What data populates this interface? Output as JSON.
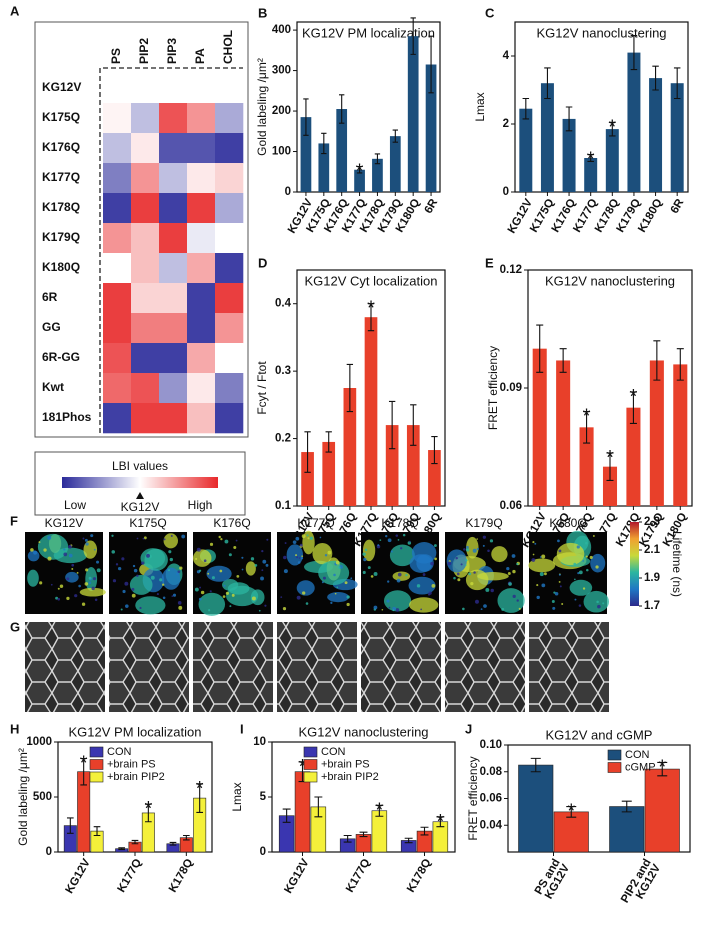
{
  "chart_data": [
    {
      "panel": "A",
      "type": "heatmap",
      "columns": [
        "PS",
        "PIP2",
        "PIP3",
        "PA",
        "CHOL"
      ],
      "rows": [
        "KG12V",
        "K175Q",
        "K176Q",
        "K177Q",
        "K178Q",
        "K179Q",
        "K180Q",
        "6R",
        "GG",
        "6R-GG",
        "Kwt",
        "181Phos"
      ],
      "values": [
        [
          0,
          0,
          0,
          0,
          0
        ],
        [
          0.05,
          -0.3,
          0.8,
          0.5,
          -0.4
        ],
        [
          -0.3,
          0.1,
          -0.8,
          -0.8,
          -0.9
        ],
        [
          -0.6,
          0.5,
          -0.3,
          0.1,
          0.2
        ],
        [
          -0.9,
          0.9,
          -0.9,
          0.9,
          -0.4
        ],
        [
          0.5,
          0.3,
          0.9,
          -0.1,
          0
        ],
        [
          0,
          0.3,
          -0.3,
          0.4,
          -0.9
        ],
        [
          0.9,
          0.2,
          0.2,
          -0.9,
          0.9
        ],
        [
          0.9,
          0.6,
          0.6,
          -0.9,
          0.5
        ],
        [
          0.8,
          -0.9,
          -0.9,
          0.4,
          0
        ],
        [
          0.7,
          0.8,
          -0.5,
          0.1,
          -0.6
        ],
        [
          -0.9,
          0.9,
          0.9,
          0.3,
          -0.9
        ]
      ],
      "zlim": [
        -1,
        1
      ],
      "low_color": "#2a2a9a",
      "high_color": "#e8282a",
      "colorbar": {
        "title": "LBI values",
        "low": "Low",
        "mid": "KG12V",
        "high": "High"
      }
    },
    {
      "panel": "B",
      "type": "bar",
      "title": "KG12V PM localization",
      "ylabel": "Gold labeling /μm²",
      "categories": [
        "KG12V",
        "K175Q",
        "K176Q",
        "K177Q",
        "K178Q",
        "K179Q",
        "K180Q",
        "6R"
      ],
      "values": [
        185,
        120,
        205,
        55,
        82,
        138,
        385,
        315
      ],
      "errors": [
        45,
        25,
        35,
        8,
        12,
        15,
        45,
        70
      ],
      "stars": [
        null,
        null,
        null,
        "*",
        null,
        null,
        null,
        null
      ],
      "color": "#1c4f7c",
      "ylim": [
        0,
        420
      ],
      "yticks": [
        0,
        100,
        200,
        300,
        400
      ]
    },
    {
      "panel": "C",
      "type": "bar",
      "title": "KG12V nanoclustering",
      "ylabel": "Lmax",
      "categories": [
        "KG12V",
        "K175Q",
        "K176Q",
        "K177Q",
        "K178Q",
        "K179Q",
        "K180Q",
        "6R"
      ],
      "values": [
        2.45,
        3.2,
        2.15,
        1.0,
        1.85,
        4.1,
        3.35,
        3.2
      ],
      "errors": [
        0.3,
        0.45,
        0.35,
        0.1,
        0.2,
        0.5,
        0.35,
        0.45
      ],
      "stars": [
        null,
        null,
        null,
        "*",
        "*",
        null,
        null,
        null
      ],
      "color": "#1c4f7c",
      "ylim": [
        0,
        5
      ],
      "yticks": [
        0,
        2,
        4
      ]
    },
    {
      "panel": "D",
      "type": "bar",
      "title": "KG12V Cyt localization",
      "ylabel": "Fcyt / Ftot",
      "categories": [
        "KG12V",
        "K175Q",
        "K176Q",
        "K177Q",
        "K178Q",
        "K179Q",
        "K180Q"
      ],
      "values": [
        0.18,
        0.195,
        0.275,
        0.38,
        0.22,
        0.22,
        0.183
      ],
      "errors": [
        0.03,
        0.015,
        0.035,
        0.02,
        0.035,
        0.03,
        0.02
      ],
      "stars": [
        null,
        null,
        null,
        "*",
        null,
        null,
        null
      ],
      "color": "#e8402a",
      "ylim": [
        0.1,
        0.45
      ],
      "yticks": [
        0.1,
        0.2,
        0.3,
        0.4
      ]
    },
    {
      "panel": "E",
      "type": "bar",
      "title": "KG12V nanoclustering",
      "ylabel": "FRET efficiency",
      "categories": [
        "KG12V",
        "K175Q",
        "K176Q",
        "K177Q",
        "K178Q",
        "K179Q",
        "K180Q"
      ],
      "values": [
        0.1,
        0.097,
        0.08,
        0.07,
        0.085,
        0.097,
        0.096
      ],
      "errors": [
        0.006,
        0.003,
        0.004,
        0.0035,
        0.004,
        0.005,
        0.004
      ],
      "stars": [
        null,
        null,
        "*",
        "*",
        "*",
        null,
        null
      ],
      "color": "#e8402a",
      "ylim": [
        0.06,
        0.12
      ],
      "yticks": [
        0.06,
        0.09,
        0.12
      ]
    },
    {
      "panel": "F",
      "type": "image-row",
      "labels": [
        "KG12V",
        "K175Q",
        "K176Q",
        "K177Q",
        "K178Q",
        "K179Q",
        "K180Q"
      ],
      "colorbar": {
        "label": "Lifetime (ns)",
        "lim": [
          1.7,
          2.3
        ],
        "ticks": [
          2.3,
          2.1,
          1.9,
          1.7
        ],
        "colors": [
          "#2c2a8c",
          "#1f77c4",
          "#2bb5a0",
          "#c8d93a",
          "#f0a030",
          "#b2182b"
        ]
      }
    },
    {
      "panel": "G",
      "type": "image-row",
      "count": 7
    },
    {
      "panel": "H",
      "type": "bar",
      "title": "KG12V PM localization",
      "ylabel": "Gold labeling /μm²",
      "categories": [
        "KG12V",
        "K177Q",
        "K178Q"
      ],
      "series": [
        {
          "name": "CON",
          "color": "#3a36b0",
          "values": [
            240,
            30,
            75
          ],
          "errors": [
            70,
            8,
            12
          ],
          "stars": [
            null,
            null,
            null
          ]
        },
        {
          "name": "+brain PS",
          "color": "#e8402a",
          "values": [
            730,
            90,
            130
          ],
          "errors": [
            120,
            15,
            20
          ],
          "stars": [
            "*",
            null,
            null
          ]
        },
        {
          "name": "+brain PIP2",
          "color": "#f4f03a",
          "values": [
            190,
            355,
            490
          ],
          "errors": [
            40,
            80,
            130
          ],
          "stars": [
            null,
            "*",
            "*"
          ]
        }
      ],
      "legend": "upper left",
      "ylim": [
        0,
        1000
      ],
      "yticks": [
        0,
        500,
        1000
      ]
    },
    {
      "panel": "I",
      "type": "bar",
      "title": "KG12V nanoclustering",
      "ylabel": "Lmax",
      "categories": [
        "KG12V",
        "K177Q",
        "K178Q"
      ],
      "series": [
        {
          "name": "CON",
          "color": "#3a36b0",
          "values": [
            3.3,
            1.2,
            1.05
          ],
          "errors": [
            0.6,
            0.3,
            0.2
          ],
          "stars": [
            null,
            null,
            null
          ]
        },
        {
          "name": "+brain PS",
          "color": "#e8402a",
          "values": [
            7.3,
            1.6,
            1.9
          ],
          "errors": [
            0.9,
            0.2,
            0.35
          ],
          "stars": [
            "*",
            null,
            null
          ]
        },
        {
          "name": "+brain PIP2",
          "color": "#f4f03a",
          "values": [
            4.1,
            3.75,
            2.75
          ],
          "errors": [
            0.9,
            0.5,
            0.45
          ],
          "stars": [
            null,
            "*",
            "*"
          ]
        }
      ],
      "legend": "upper left",
      "ylim": [
        0,
        10
      ],
      "yticks": [
        0,
        5,
        10
      ]
    },
    {
      "panel": "J",
      "type": "bar",
      "title": "KG12V and cGMP",
      "ylabel": "FRET efficiency",
      "categories": [
        [
          "PS and",
          "KG12V"
        ],
        [
          "PIP2 and",
          "KG12V"
        ]
      ],
      "series": [
        {
          "name": "CON",
          "color": "#1c4f7c",
          "values": [
            0.085,
            0.054
          ],
          "errors": [
            0.005,
            0.004
          ],
          "stars": [
            null,
            null
          ]
        },
        {
          "name": "cGMP",
          "color": "#e8402a",
          "values": [
            0.05,
            0.082
          ],
          "errors": [
            0.004,
            0.005
          ],
          "stars": [
            "*",
            "*"
          ]
        }
      ],
      "legend": "upper right",
      "ylim": [
        0.02,
        0.1
      ],
      "yticks": [
        0.04,
        0.06,
        0.08,
        {
          "value": 0.1,
          "label": "0.10"
        }
      ]
    }
  ]
}
